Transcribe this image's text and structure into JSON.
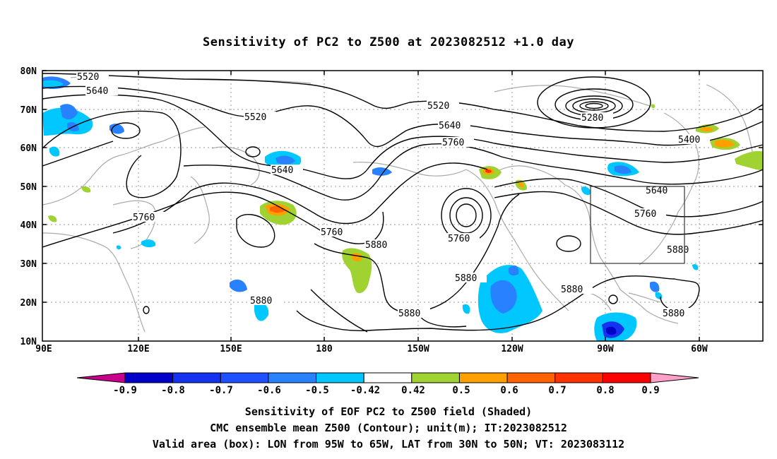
{
  "title": "Sensitivity of PC2 to Z500 at 2023082512 +1.0 day",
  "lat_labels": [
    "80N",
    "70N",
    "60N",
    "50N",
    "40N",
    "30N",
    "20N",
    "10N"
  ],
  "lon_labels": [
    "90E",
    "120E",
    "150E",
    "180",
    "150W",
    "120W",
    "90W",
    "60W"
  ],
  "contour_labels": [
    "5520",
    "5640",
    "5520",
    "5640",
    "5520",
    "5640",
    "5760",
    "5280",
    "5400",
    "5640",
    "5760",
    "5760",
    "5760",
    "5760",
    "5880",
    "5760",
    "5880",
    "5880",
    "5880",
    "5880",
    "5880",
    "5880"
  ],
  "colorbar": {
    "labels": [
      "-0.9",
      "-0.8",
      "-0.7",
      "-0.6",
      "-0.5",
      "-0.42",
      "0.42",
      "0.5",
      "0.6",
      "0.7",
      "0.8",
      "0.9"
    ],
    "colors": [
      "#c8008c",
      "#0000c8",
      "#1432f0",
      "#1e50ff",
      "#2882ff",
      "#00c8ff",
      "#ffffff",
      "#a0d232",
      "#ffa000",
      "#ff6400",
      "#ff3200",
      "#ff0000",
      "#ffa0c8"
    ]
  },
  "captions": [
    "Sensitivity of EOF PC2 to Z500 field (Shaded)",
    "CMC ensemble mean Z500 (Contour); unit(m); IT:2023082512",
    "Valid area (box): LON from 95W to 65W, LAT from 30N to 50N; VT: 2023083112"
  ],
  "valid_box": {
    "lon_min": "95W",
    "lon_max": "65W",
    "lat_min": "30N",
    "lat_max": "50N"
  }
}
